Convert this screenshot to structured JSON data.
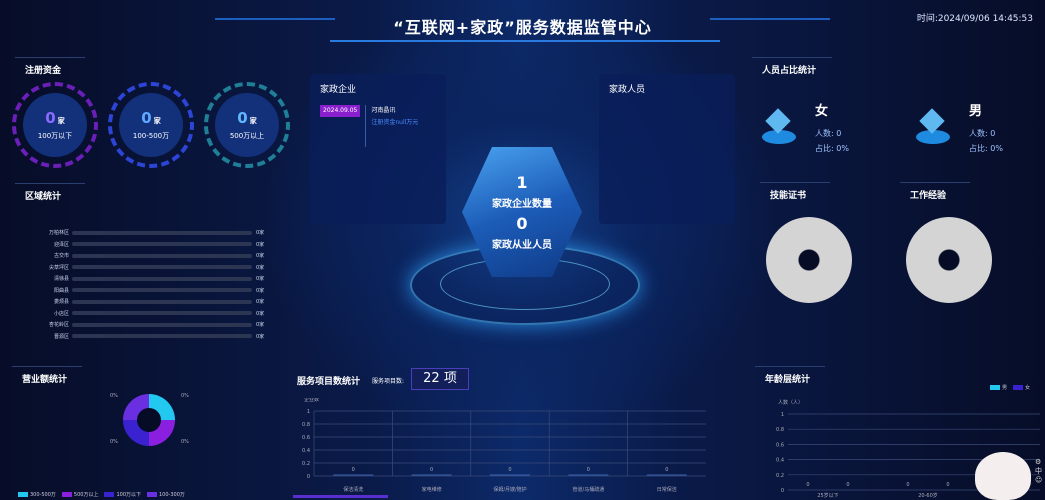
{
  "header": {
    "title": "“互联网+家政”服务数据监管中心",
    "time": "时间:2024/09/06 14:45:53"
  },
  "capital": {
    "title": "注册资金",
    "unit": "家",
    "items": [
      {
        "value": "0",
        "label": "100万以下",
        "color": "#6a1fb8"
      },
      {
        "value": "0",
        "label": "100-500万",
        "color": "#2d45d6"
      },
      {
        "value": "0",
        "label": "500万以上",
        "color": "#1f7f96"
      }
    ]
  },
  "region": {
    "title": "区域统计",
    "items": [
      {
        "name": "万柏林区",
        "value": "0家"
      },
      {
        "name": "迎泽区",
        "value": "0家"
      },
      {
        "name": "古交市",
        "value": "0家"
      },
      {
        "name": "尖草坪区",
        "value": "0家"
      },
      {
        "name": "清徐县",
        "value": "0家"
      },
      {
        "name": "阳曲县",
        "value": "0家"
      },
      {
        "name": "娄烦县",
        "value": "0家"
      },
      {
        "name": "小店区",
        "value": "0家"
      },
      {
        "name": "杏花岭区",
        "value": "0家"
      },
      {
        "name": "晋源区",
        "value": "0家"
      }
    ]
  },
  "enterprise": {
    "title": "家政企业",
    "date": "2024.09.05",
    "name": "河南晶讯",
    "capital": "注册资金null万元"
  },
  "staff": {
    "title": "家政人员"
  },
  "center": {
    "enterprise_count": "1",
    "enterprise_label": "家政企业数量",
    "staff_count": "0",
    "staff_label": "家政从业人员"
  },
  "ratio": {
    "title": "人员占比统计",
    "female": {
      "label": "女",
      "count": "人数: 0",
      "pct": "占比: 0%"
    },
    "male": {
      "label": "男",
      "count": "人数: 0",
      "pct": "占比: 0%"
    }
  },
  "cert": {
    "title": "技能证书"
  },
  "experience": {
    "title": "工作经验"
  },
  "revenue": {
    "title": "营业额统计",
    "labels": [
      "0%",
      "0%",
      "0%",
      "0%"
    ],
    "legend": [
      {
        "label": "300-500万",
        "color": "#22c8f0"
      },
      {
        "label": "500万以上",
        "color": "#8a1fe0"
      },
      {
        "label": "100万以下",
        "color": "#3a22d0"
      },
      {
        "label": "100-300万",
        "color": "#6a2fe0"
      }
    ]
  },
  "services": {
    "title": "服务项目数统计",
    "count_label": "服务项目数:",
    "count": "22 项",
    "ylabel": "企业数",
    "yticks": [
      "1",
      "0.8",
      "0.6",
      "0.4",
      "0.2",
      "0"
    ],
    "categories": [
      "保洁清洗",
      "家电维修",
      "保姆/月嫂/陪护",
      "管道/马桶疏通",
      "日常保洁"
    ],
    "values": [
      "0",
      "0",
      "0",
      "0",
      "0"
    ]
  },
  "age": {
    "title": "年龄层统计",
    "ylabel": "人数（人）",
    "yticks": [
      "1",
      "0.8",
      "0.6",
      "0.4",
      "0.2",
      "0"
    ],
    "legend": [
      "男",
      "女"
    ],
    "categories": [
      "25岁以下",
      "20-60岁"
    ],
    "values": [
      "0",
      "0",
      "0",
      "0"
    ]
  }
}
